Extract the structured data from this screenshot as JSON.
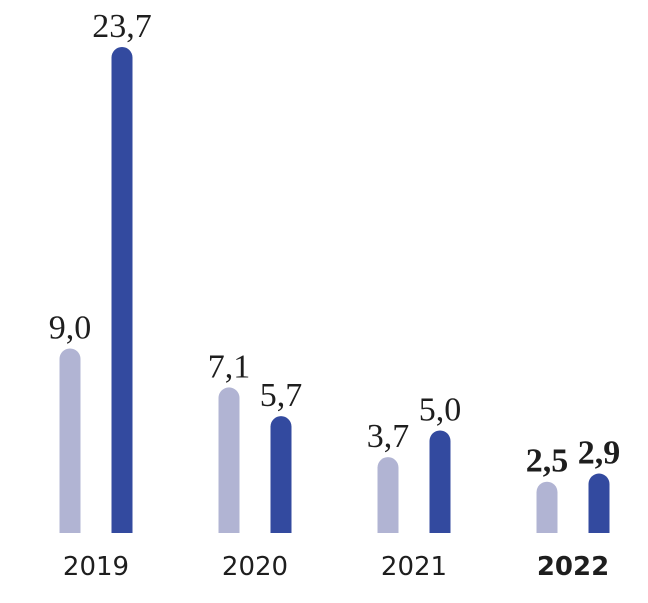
{
  "chart_data": {
    "type": "bar",
    "categories": [
      "2019",
      "2020",
      "2021",
      "2022"
    ],
    "series": [
      {
        "values": [
          9.0,
          7.1,
          3.7,
          2.5
        ],
        "labels": [
          "9,0",
          "7,1",
          "3,7",
          "2,5"
        ],
        "color": "#b1b4d3"
      },
      {
        "values": [
          23.7,
          5.7,
          5.0,
          2.9
        ],
        "labels": [
          "23,7",
          "5,7",
          "5,0",
          "2,9"
        ],
        "color": "#334a9f"
      }
    ],
    "highlight_category": "2022",
    "grid": false,
    "ylim": [
      0,
      23.7
    ]
  }
}
